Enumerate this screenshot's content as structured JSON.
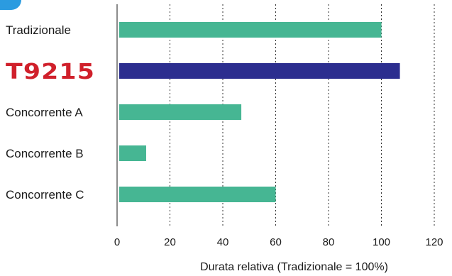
{
  "chart_data": {
    "type": "bar",
    "orientation": "horizontal",
    "categories": [
      "Tradizionale",
      "T9215",
      "Concorrente A",
      "Concorrente B",
      "Concorrente C"
    ],
    "values": [
      100,
      107,
      47,
      11,
      60
    ],
    "bar_colors": [
      "#46b693",
      "#2c2e8f",
      "#46b693",
      "#46b693",
      "#46b693"
    ],
    "highlight_category": "T9215",
    "highlight_label_style": "logo",
    "xlabel": "Durata relativa (Tradizionale =  100%)",
    "xlim": [
      0,
      120
    ],
    "xticks": [
      0,
      20,
      40,
      60,
      80,
      100,
      120
    ],
    "grid": "vertical-dotted",
    "title": ""
  },
  "colors": {
    "series": "#46b693",
    "highlight": "#2c2e8f",
    "logo": "#d0202b",
    "corner_tab": "#2b9be0"
  }
}
